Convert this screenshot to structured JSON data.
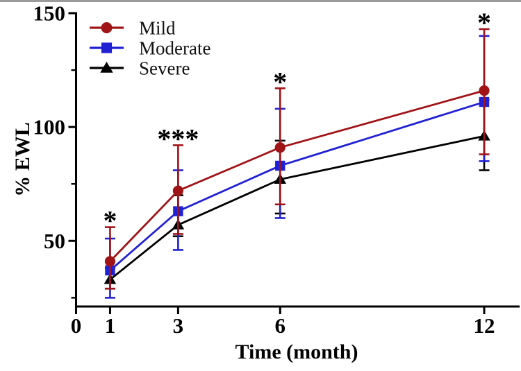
{
  "colors": {
    "mild": "#a01418",
    "moderate": "#2121d4",
    "severe": "#000000",
    "axis": "#000000",
    "top_edge": "#9b9b9b"
  },
  "chart_data": {
    "type": "line",
    "title": "",
    "xlabel": "Time (month)",
    "ylabel": "% EWL",
    "x": [
      1,
      3,
      6,
      12
    ],
    "x_ticks": [
      0,
      1,
      3,
      6,
      12
    ],
    "y_major_ticks": [
      50,
      100,
      150
    ],
    "y_minor_ticks": [
      25,
      75,
      125
    ],
    "xlim": [
      0,
      13
    ],
    "ylim": [
      21,
      150
    ],
    "grid": false,
    "legend_position": "inside-top-left",
    "series": [
      {
        "name": "Mild",
        "marker": "circle",
        "color": "#a01418",
        "values": [
          41,
          72,
          91,
          116
        ],
        "err_low": [
          29,
          53,
          66,
          88
        ],
        "err_high": [
          56,
          92,
          117,
          143
        ]
      },
      {
        "name": "Moderate",
        "marker": "square",
        "color": "#2121d4",
        "values": [
          37,
          63,
          83,
          111
        ],
        "err_low": [
          25,
          46,
          60,
          85
        ],
        "err_high": [
          51,
          81,
          108,
          140
        ]
      },
      {
        "name": "Severe",
        "marker": "triangle",
        "color": "#000000",
        "values": [
          33,
          57,
          77,
          96
        ],
        "err_low": [
          29,
          52,
          62,
          81
        ],
        "err_high": [
          38,
          70,
          94,
          112
        ]
      }
    ],
    "significance_markers": [
      {
        "x": 1,
        "label": "*"
      },
      {
        "x": 3,
        "label": "***"
      },
      {
        "x": 6,
        "label": "*"
      },
      {
        "x": 12,
        "label": "*"
      }
    ]
  }
}
